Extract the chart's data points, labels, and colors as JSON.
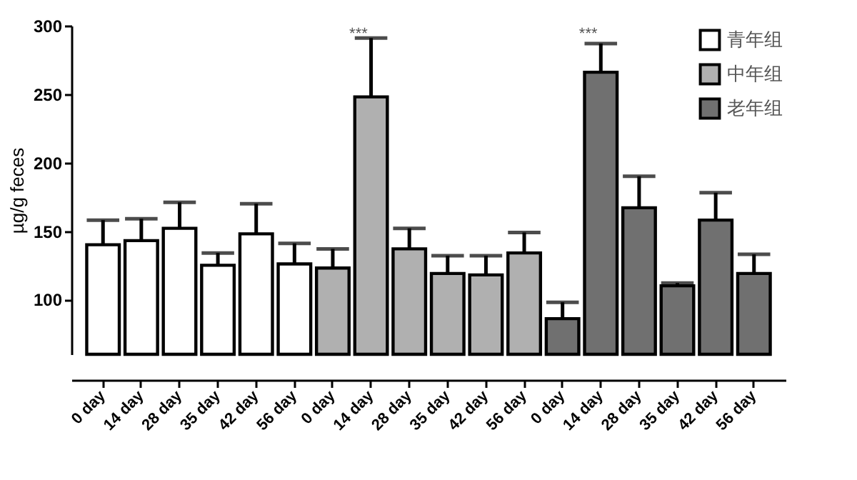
{
  "chart_data": {
    "type": "bar",
    "ylabel": "µg/g feces",
    "categories": [
      "0 day",
      "14 day",
      "28 day",
      "35 day",
      "42 day",
      "56 day",
      "0 day",
      "14 day",
      "28 day",
      "35 day",
      "42 day",
      "56 day",
      "0 day",
      "14 day",
      "28 day",
      "35 day",
      "42 day",
      "56 day"
    ],
    "series": [
      {
        "name": "青年组",
        "color": "#ffffff",
        "values": [
          140,
          143,
          152,
          125,
          148,
          126,
          null,
          null,
          null,
          null,
          null,
          null,
          null,
          null,
          null,
          null,
          null,
          null
        ],
        "errors": [
          18,
          16,
          19,
          9,
          22,
          15,
          null,
          null,
          null,
          null,
          null,
          null,
          null,
          null,
          null,
          null,
          null,
          null
        ]
      },
      {
        "name": "中年组",
        "color": "#b0b0b0",
        "values": [
          null,
          null,
          null,
          null,
          null,
          null,
          123,
          248,
          137,
          119,
          118,
          134,
          null,
          null,
          null,
          null,
          null,
          null
        ],
        "errors": [
          null,
          null,
          null,
          null,
          null,
          null,
          14,
          43,
          15,
          13,
          14,
          15,
          null,
          null,
          null,
          null,
          null,
          null
        ]
      },
      {
        "name": "老年组",
        "color": "#707070",
        "values": [
          null,
          null,
          null,
          null,
          null,
          null,
          null,
          null,
          null,
          null,
          null,
          null,
          86,
          266,
          167,
          110,
          158,
          119
        ],
        "errors": [
          null,
          null,
          null,
          null,
          null,
          null,
          null,
          null,
          null,
          null,
          null,
          null,
          12,
          21,
          23,
          2,
          20,
          14
        ]
      }
    ],
    "ylim": [
      60,
      300
    ],
    "yticks": [
      100,
      150,
      200,
      250,
      300
    ],
    "annotations": [
      "***",
      "***"
    ],
    "legend": "top right"
  }
}
